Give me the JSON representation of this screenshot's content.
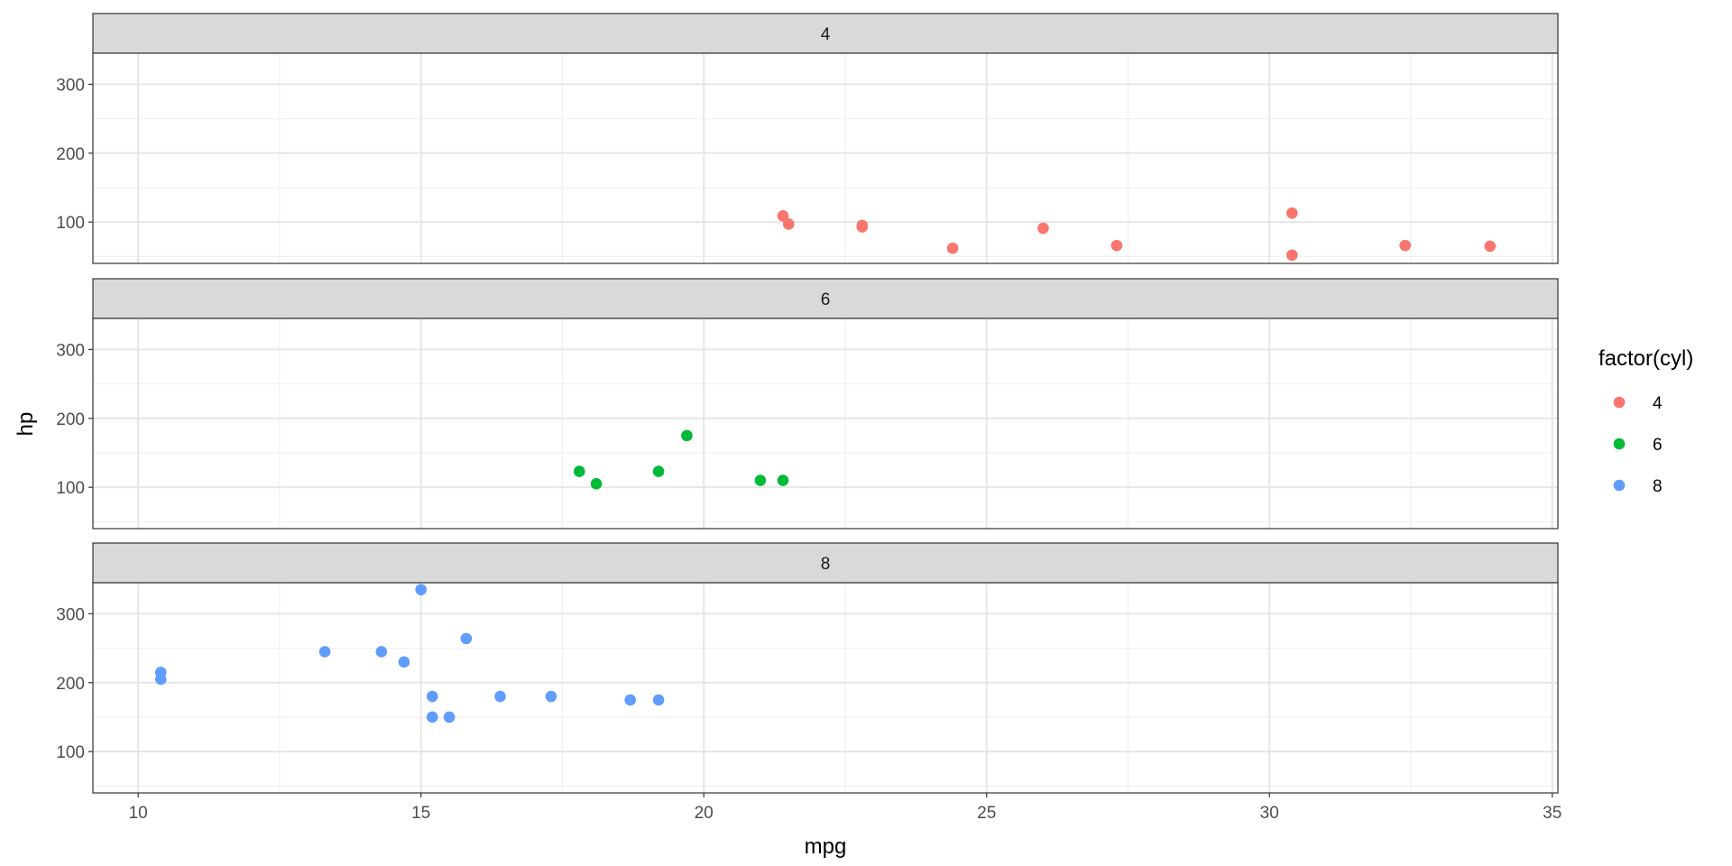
{
  "chart_data": {
    "type": "scatter",
    "facet_by": "cyl",
    "xlabel": "mpg",
    "ylabel": "hp",
    "xlim": [
      9.2,
      35.1
    ],
    "ylim": [
      40,
      345
    ],
    "x_ticks": [
      10,
      15,
      20,
      25,
      30,
      35
    ],
    "y_ticks": [
      100,
      200,
      300
    ],
    "grid": true,
    "legend": {
      "title": "factor(cyl)",
      "placement": "right",
      "entries": [
        {
          "label": "4",
          "color": "#F8766D"
        },
        {
          "label": "6",
          "color": "#00BA38"
        },
        {
          "label": "8",
          "color": "#619CFF"
        }
      ]
    },
    "panels": [
      {
        "strip": "4",
        "color": "#F8766D",
        "points": [
          {
            "x": 22.8,
            "y": 93
          },
          {
            "x": 24.4,
            "y": 62
          },
          {
            "x": 22.8,
            "y": 95
          },
          {
            "x": 32.4,
            "y": 66
          },
          {
            "x": 30.4,
            "y": 52
          },
          {
            "x": 33.9,
            "y": 65
          },
          {
            "x": 21.5,
            "y": 97
          },
          {
            "x": 27.3,
            "y": 66
          },
          {
            "x": 26.0,
            "y": 91
          },
          {
            "x": 30.4,
            "y": 113
          },
          {
            "x": 21.4,
            "y": 109
          }
        ]
      },
      {
        "strip": "6",
        "color": "#00BA38",
        "points": [
          {
            "x": 21.0,
            "y": 110
          },
          {
            "x": 21.4,
            "y": 110
          },
          {
            "x": 18.1,
            "y": 105
          },
          {
            "x": 19.2,
            "y": 123
          },
          {
            "x": 17.8,
            "y": 123
          },
          {
            "x": 19.7,
            "y": 175
          }
        ]
      },
      {
        "strip": "8",
        "color": "#619CFF",
        "points": [
          {
            "x": 15.0,
            "y": 335
          },
          {
            "x": 13.3,
            "y": 245
          },
          {
            "x": 14.3,
            "y": 245
          },
          {
            "x": 14.7,
            "y": 230
          },
          {
            "x": 10.4,
            "y": 215
          },
          {
            "x": 10.4,
            "y": 205
          },
          {
            "x": 15.8,
            "y": 264
          },
          {
            "x": 15.2,
            "y": 180
          },
          {
            "x": 16.4,
            "y": 180
          },
          {
            "x": 17.3,
            "y": 180
          },
          {
            "x": 15.2,
            "y": 150
          },
          {
            "x": 15.5,
            "y": 150
          },
          {
            "x": 18.7,
            "y": 175
          },
          {
            "x": 19.2,
            "y": 175
          }
        ]
      }
    ]
  }
}
